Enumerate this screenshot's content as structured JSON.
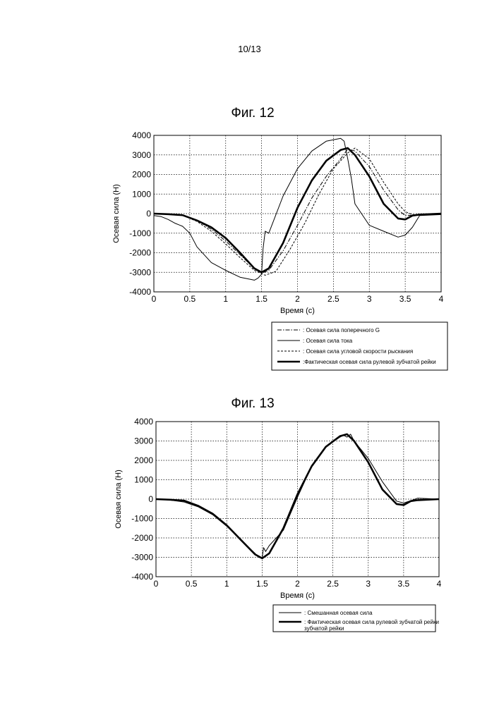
{
  "page": {
    "number": "10/13"
  },
  "charts": {
    "chart_data": [
      {
        "type": "line",
        "title": "Фиг. 12",
        "xlabel": "Время (с)",
        "ylabel": "Осевая сила (Н)",
        "xlim": [
          0,
          4
        ],
        "ylim": [
          -4000,
          4000
        ],
        "grid": true,
        "xticks": [
          0,
          0.5,
          1,
          1.5,
          2,
          2.5,
          3,
          3.5,
          4
        ],
        "xtick_labels": [
          "0",
          "0.5",
          "1",
          "1.5",
          "2",
          "2.5",
          "3",
          "3.5",
          "4"
        ],
        "yticks": [
          4000,
          3000,
          2000,
          1000,
          0,
          -1000,
          -2000,
          -3000,
          -4000
        ],
        "ytick_labels": [
          "4000",
          "3000",
          "2000",
          "1000",
          "0",
          "-1000",
          "-2000",
          "-3000",
          "-4000"
        ],
        "legend_position": "below-right",
        "series": [
          {
            "name": ": Осевая сила поперечного G",
            "style": "dashdot",
            "x": [
              0,
              0.2,
              0.4,
              0.6,
              0.8,
              1.0,
              1.2,
              1.4,
              1.5,
              1.6,
              1.8,
              2.0,
              2.2,
              2.4,
              2.6,
              2.7,
              2.8,
              3.0,
              3.2,
              3.4,
              3.5,
              3.6,
              3.7,
              4.0
            ],
            "y": [
              0,
              -40,
              -80,
              -350,
              -800,
              -1400,
              -2100,
              -2800,
              -3050,
              -2900,
              -1900,
              -600,
              800,
              1900,
              2800,
              3300,
              3200,
              2400,
              1200,
              200,
              -100,
              -80,
              -30,
              0
            ]
          },
          {
            "name": ": Осевая сила тока",
            "style": "thin",
            "x": [
              0,
              0.1,
              0.2,
              0.3,
              0.4,
              0.5,
              0.6,
              0.8,
              1.0,
              1.2,
              1.4,
              1.45,
              1.5,
              1.52,
              1.55,
              1.6,
              1.8,
              2.0,
              2.2,
              2.4,
              2.6,
              2.65,
              2.7,
              2.75,
              2.8,
              3.0,
              3.2,
              3.4,
              3.5,
              3.6,
              3.7,
              4.0
            ],
            "y": [
              -100,
              -150,
              -300,
              -500,
              -650,
              -1000,
              -1700,
              -2500,
              -2900,
              -3250,
              -3400,
              -3300,
              -3100,
              -1800,
              -900,
              -1000,
              900,
              2300,
              3200,
              3700,
              3850,
              3700,
              2800,
              1800,
              500,
              -600,
              -900,
              -1200,
              -1100,
              -700,
              -100,
              -50
            ]
          },
          {
            "name": ": Осевая сила угловой скорости рыскания",
            "style": "dashed",
            "x": [
              0,
              0.2,
              0.4,
              0.6,
              0.8,
              1.0,
              1.2,
              1.4,
              1.55,
              1.7,
              1.9,
              2.1,
              2.3,
              2.5,
              2.7,
              2.8,
              3.0,
              3.2,
              3.4,
              3.5,
              3.6,
              3.7,
              4.0
            ],
            "y": [
              0,
              -30,
              -90,
              -400,
              -900,
              -1550,
              -2250,
              -2900,
              -3150,
              -2950,
              -1800,
              -500,
              1000,
              2300,
              3100,
              3350,
              2800,
              1600,
              500,
              100,
              -50,
              -60,
              0
            ]
          },
          {
            "name": ":Фактическая осевая сила рулевой зубчатой рейки",
            "style": "thick",
            "x": [
              0,
              0.2,
              0.4,
              0.6,
              0.8,
              1.0,
              1.2,
              1.4,
              1.5,
              1.6,
              1.8,
              2.0,
              2.2,
              2.4,
              2.6,
              2.7,
              2.8,
              3.0,
              3.2,
              3.4,
              3.5,
              3.6,
              3.7,
              4.0
            ],
            "y": [
              0,
              -30,
              -80,
              -350,
              -700,
              -1250,
              -2000,
              -2800,
              -3000,
              -2800,
              -1500,
              300,
              1700,
              2700,
              3250,
              3350,
              3000,
              1900,
              500,
              -250,
              -300,
              -100,
              -50,
              0
            ]
          }
        ]
      },
      {
        "type": "line",
        "title": "Фиг. 13",
        "xlabel": "Время (с)",
        "ylabel": "Осевая сила (Н)",
        "xlim": [
          0,
          4
        ],
        "ylim": [
          -4000,
          4000
        ],
        "grid": true,
        "xticks": [
          0,
          0.5,
          1,
          1.5,
          2,
          2.5,
          3,
          3.5,
          4
        ],
        "xtick_labels": [
          "0",
          "0.5",
          "1",
          "1.5",
          "2",
          "2.5",
          "3",
          "3.5",
          "4"
        ],
        "yticks": [
          4000,
          3000,
          2000,
          1000,
          0,
          -1000,
          -2000,
          -3000,
          -4000
        ],
        "ytick_labels": [
          "4000",
          "3000",
          "2000",
          "1000",
          "0",
          "-1000",
          "-2000",
          "-3000",
          "-4000"
        ],
        "legend_position": "below-right",
        "series": [
          {
            "name": ": Смешанная осевая сила",
            "style": "thin",
            "x": [
              0,
              0.2,
              0.4,
              0.6,
              0.8,
              1.0,
              1.2,
              1.4,
              1.45,
              1.5,
              1.52,
              1.55,
              1.6,
              1.8,
              2.0,
              2.2,
              2.4,
              2.6,
              2.65,
              2.7,
              2.75,
              2.8,
              3.0,
              3.2,
              3.4,
              3.5,
              3.6,
              3.7,
              4.0
            ],
            "y": [
              0,
              -50,
              -150,
              -400,
              -800,
              -1400,
              -2100,
              -2800,
              -3000,
              -3050,
              -2500,
              -2700,
              -2400,
              -1600,
              100,
              1700,
              2700,
              3200,
              3300,
              3200,
              3350,
              3000,
              2100,
              900,
              -100,
              -200,
              -80,
              50,
              0
            ]
          },
          {
            "name": ": Фактическая осевая сила рулевой зубчатой рейки",
            "style": "thick",
            "x": [
              0,
              0.2,
              0.4,
              0.6,
              0.8,
              1.0,
              1.2,
              1.4,
              1.5,
              1.6,
              1.8,
              2.0,
              2.2,
              2.4,
              2.6,
              2.7,
              2.8,
              3.0,
              3.2,
              3.4,
              3.5,
              3.6,
              3.7,
              4.0
            ],
            "y": [
              0,
              -30,
              -80,
              -350,
              -750,
              -1350,
              -2100,
              -2850,
              -3050,
              -2800,
              -1500,
              250,
              1700,
              2700,
              3250,
              3350,
              3000,
              1900,
              500,
              -250,
              -300,
              -100,
              -50,
              0
            ]
          }
        ],
        "legend_extra_line": "зубчатой рейки"
      }
    ]
  }
}
